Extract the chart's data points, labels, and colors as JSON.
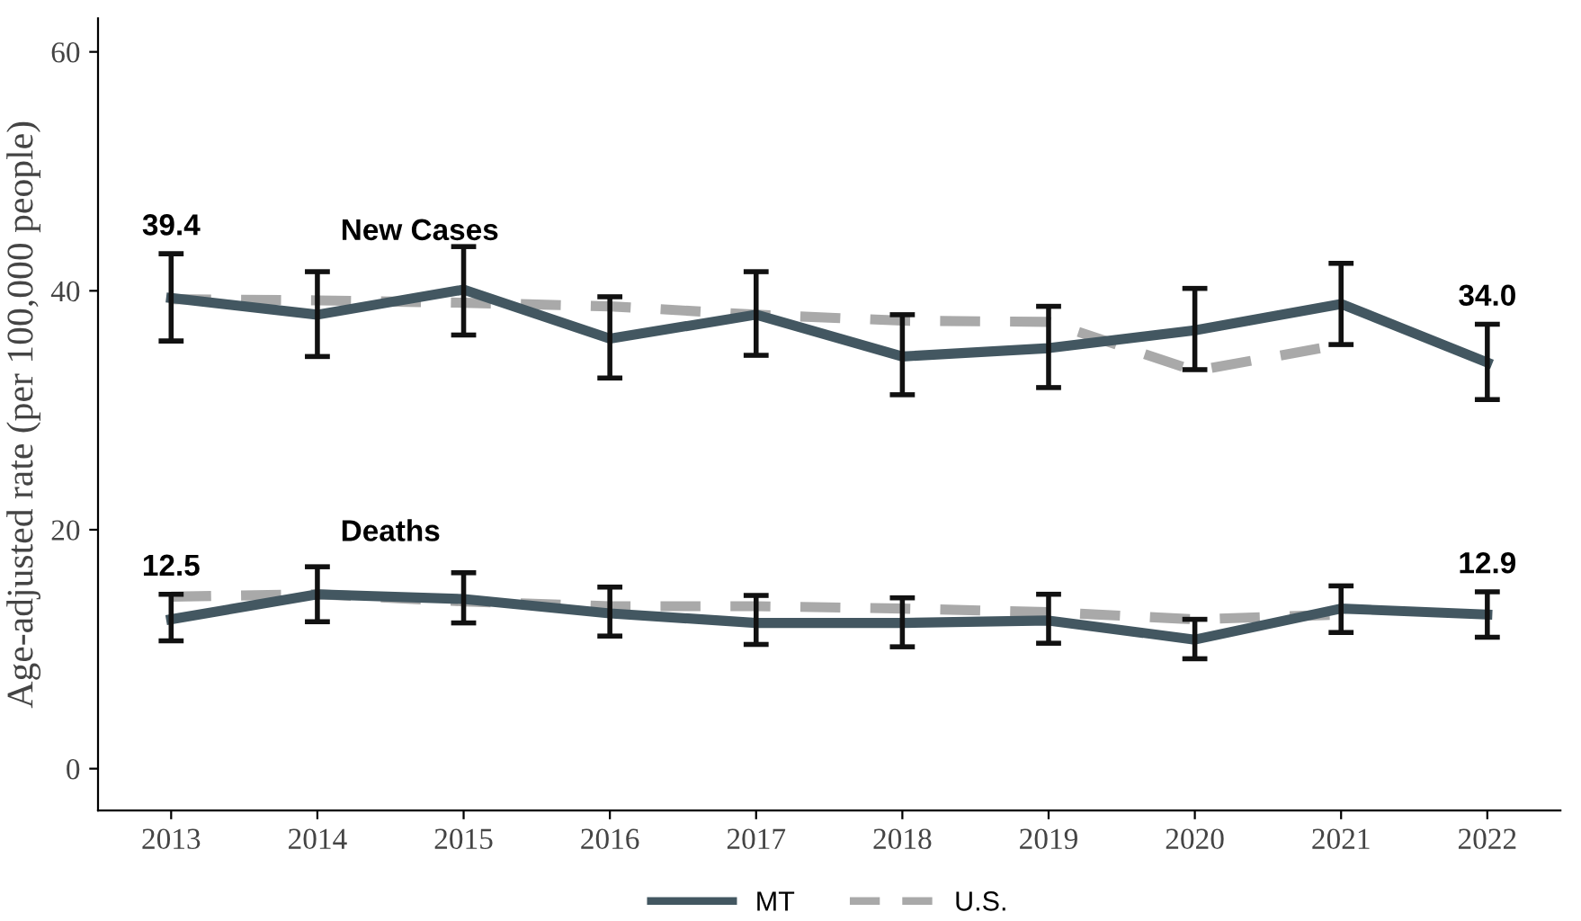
{
  "chart_data": {
    "type": "line",
    "ylabel": "Age-adjusted rate (per 100,000 people)",
    "categories": [
      "2013",
      "2014",
      "2015",
      "2016",
      "2017",
      "2018",
      "2019",
      "2020",
      "2021",
      "2022"
    ],
    "series": [
      {
        "name": "MT",
        "color": "#435761",
        "line_style": "solid",
        "values": [
          39.4,
          38.0,
          40.1,
          36.0,
          38.0,
          34.5,
          35.2,
          36.7,
          38.9,
          34.0
        ],
        "errors": [
          [
            35.8,
            43.1
          ],
          [
            34.5,
            41.6
          ],
          [
            36.3,
            43.7
          ],
          [
            32.7,
            39.5
          ],
          [
            34.6,
            41.6
          ],
          [
            31.3,
            38.0
          ],
          [
            31.9,
            38.7
          ],
          [
            33.4,
            40.2
          ],
          [
            35.5,
            42.3
          ],
          [
            30.9,
            37.2
          ]
        ],
        "value_labels": [
          "39.4",
          null,
          null,
          null,
          null,
          null,
          null,
          null,
          null,
          "34.0"
        ]
      },
      {
        "name": "U.S.",
        "color": "#a9a9a9",
        "line_style": "dashed",
        "values": [
          39.3,
          39.2,
          39.0,
          38.7,
          38.0,
          37.5,
          37.4,
          33.3,
          35.5,
          null
        ]
      },
      {
        "color": "#435761",
        "line_style": "solid",
        "values": [
          12.5,
          14.6,
          14.2,
          13.0,
          12.2,
          12.2,
          12.4,
          10.8,
          13.4,
          12.9
        ],
        "errors": [
          [
            10.7,
            14.6
          ],
          [
            12.3,
            16.9
          ],
          [
            12.2,
            16.4
          ],
          [
            11.1,
            15.2
          ],
          [
            10.4,
            14.5
          ],
          [
            10.2,
            14.3
          ],
          [
            10.5,
            14.6
          ],
          [
            9.2,
            12.5
          ],
          [
            11.4,
            15.3
          ],
          [
            11.0,
            14.8
          ]
        ],
        "value_labels": [
          "12.5",
          null,
          null,
          null,
          null,
          null,
          null,
          null,
          null,
          "12.9"
        ]
      },
      {
        "color": "#a9a9a9",
        "line_style": "dashed",
        "values": [
          14.4,
          14.6,
          14.0,
          13.6,
          13.6,
          13.4,
          13.1,
          12.5,
          12.9,
          null
        ]
      }
    ],
    "annotations": [
      "New Cases",
      "Deaths"
    ],
    "ylim": [
      -3.5,
      62.8
    ],
    "yticks": [
      0,
      20,
      40,
      60
    ],
    "grid": false,
    "legend": "bottom",
    "marker": "none"
  }
}
